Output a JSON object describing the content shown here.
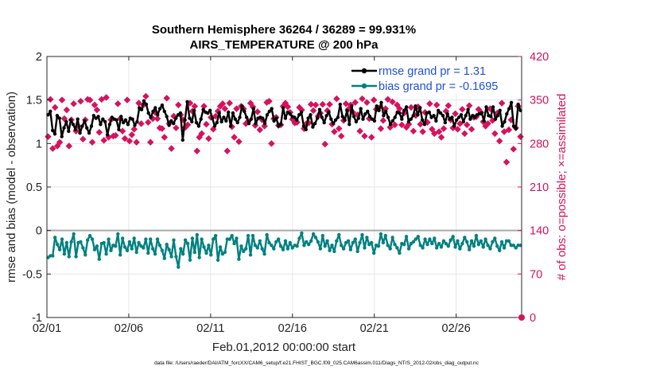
{
  "chart_data": {
    "type": "line",
    "title_line1": "Southern Hemisphere 36264 / 36289 = 99.931%",
    "title_line2": "AIRS_TEMPERATURE @ 200 hPa",
    "xlabel": "Feb.01,2012 00:00:00 start",
    "ylabel_left": "rmse and bias (model - observation)",
    "ylabel_right": "# of obs: o=possible; ×=assimilated",
    "footer": "data file: /Users/raeder/DAI/ATM_forcXX/CAM6_setup/f.e21.FHIST_BGC.f09_025.CAM6assim.011/Diags_NTrS_2012-02/obs_diag_output.nc",
    "x_ticks": [
      "02/01",
      "02/06",
      "02/11",
      "02/16",
      "02/21",
      "02/26"
    ],
    "xlim_days": [
      0,
      29
    ],
    "y_left_ticks": [
      "-1",
      "-0.5",
      "0",
      "0.5",
      "1",
      "1.5",
      "2"
    ],
    "ylim_left": [
      -1,
      2
    ],
    "y_right_ticks": [
      "0",
      "70",
      "140",
      "210",
      "280",
      "350",
      "420"
    ],
    "ylim_right": [
      0,
      420
    ],
    "grid": true,
    "legend_position": "top-right",
    "colors": {
      "rmse": "#000000",
      "bias": "#008080",
      "obs": "#d6125e",
      "zero": "#aaaaaa"
    },
    "series": [
      {
        "name": "rmse grand pr = 1.31",
        "axis": "left",
        "values": [
          1.33,
          1.37,
          1.15,
          1.11,
          1.32,
          1.29,
          1.08,
          1.18,
          1.25,
          1.14,
          1.27,
          1.22,
          1.16,
          1.28,
          1.12,
          1.2,
          1.26,
          1.18,
          1.12,
          1.2,
          1.32,
          1.29,
          1.31,
          1.22,
          1.28,
          1.25,
          1.1,
          1.22,
          1.3,
          1.28,
          1.27,
          1.16,
          1.31,
          1.24,
          1.27,
          1.22,
          1.29,
          1.28,
          1.21,
          1.25,
          1.41,
          1.39,
          1.49,
          1.45,
          1.35,
          1.3,
          1.37,
          1.41,
          1.33,
          1.4,
          1.44,
          1.37,
          1.31,
          1.21,
          1.26,
          1.23,
          1.29,
          1.33,
          1.35,
          1.04,
          1.27,
          1.48,
          1.29,
          1.25,
          1.38,
          1.24,
          1.2,
          1.28,
          1.39,
          1.36,
          1.35,
          1.38,
          1.29,
          1.2,
          1.24,
          1.35,
          1.25,
          1.3,
          1.26,
          1.36,
          1.2,
          1.35,
          1.28,
          1.24,
          1.3,
          1.43,
          1.37,
          1.3,
          1.23,
          1.28,
          1.4,
          1.23,
          1.29,
          1.3,
          1.29,
          1.23,
          1.33,
          1.37,
          1.4,
          1.26,
          1.29,
          1.2,
          1.22,
          1.41,
          1.29,
          1.36,
          1.34,
          1.31,
          1.3,
          1.27,
          1.33,
          1.36,
          1.2,
          1.16,
          1.29,
          1.33,
          1.19,
          1.23,
          1.29,
          1.39,
          1.3,
          1.24,
          1.32,
          1.36,
          1.28,
          1.23,
          1.27,
          1.3,
          1.45,
          1.31,
          1.27,
          1.38,
          1.22,
          1.43,
          1.31,
          1.25,
          1.29,
          1.4,
          1.28,
          1.34,
          1.37,
          1.31,
          1.28,
          1.26,
          1.43,
          1.38,
          1.47,
          1.32,
          1.37,
          1.3,
          1.22,
          1.26,
          1.3,
          1.36,
          1.35,
          1.28,
          1.38,
          1.42,
          1.25,
          1.28,
          1.32,
          1.43,
          1.33,
          1.41,
          1.27,
          1.22,
          1.35,
          1.36,
          1.3,
          1.32,
          1.26,
          1.38,
          1.35,
          1.32,
          1.24,
          1.34,
          1.28,
          1.3,
          1.2,
          1.27,
          1.3,
          1.33,
          1.25,
          1.32,
          1.39,
          1.28,
          1.32,
          1.3,
          1.33,
          1.34,
          1.35,
          1.26,
          1.42,
          1.32,
          1.31,
          1.42,
          1.28,
          1.32,
          1.38,
          1.2,
          1.25,
          1.34,
          1.4,
          1.47,
          1.2,
          1.17,
          1.45,
          1.38
        ]
      },
      {
        "name": "bias grand pr = -0.1695",
        "axis": "left",
        "values": [
          -0.31,
          -0.29,
          -0.29,
          -0.08,
          -0.16,
          -0.22,
          -0.1,
          -0.27,
          -0.14,
          -0.3,
          -0.13,
          -0.04,
          -0.3,
          -0.14,
          -0.13,
          -0.2,
          -0.28,
          -0.11,
          -0.06,
          -0.1,
          -0.22,
          -0.18,
          -0.33,
          -0.15,
          -0.14,
          -0.27,
          -0.1,
          -0.23,
          -0.17,
          -0.18,
          -0.04,
          -0.28,
          -0.09,
          -0.19,
          -0.23,
          -0.13,
          -0.21,
          -0.09,
          -0.25,
          -0.14,
          -0.18,
          -0.2,
          -0.1,
          -0.26,
          -0.1,
          -0.21,
          -0.27,
          -0.1,
          -0.17,
          -0.23,
          -0.32,
          -0.16,
          -0.22,
          -0.3,
          -0.11,
          -0.3,
          -0.42,
          -0.21,
          -0.27,
          -0.11,
          -0.15,
          -0.34,
          -0.09,
          -0.25,
          -0.05,
          -0.31,
          -0.1,
          -0.19,
          -0.26,
          -0.17,
          -0.28,
          -0.1,
          -0.06,
          -0.34,
          -0.19,
          -0.27,
          -0.25,
          -0.1,
          -0.1,
          -0.06,
          -0.15,
          -0.09,
          -0.33,
          -0.18,
          -0.24,
          -0.21,
          -0.06,
          -0.28,
          -0.06,
          -0.17,
          -0.2,
          -0.12,
          -0.21,
          -0.27,
          -0.05,
          -0.14,
          -0.17,
          -0.21,
          -0.13,
          -0.1,
          -0.18,
          -0.22,
          -0.12,
          -0.21,
          -0.14,
          -0.2,
          -0.17,
          -0.18,
          -0.09,
          -0.03,
          -0.17,
          -0.13,
          -0.16,
          -0.12,
          -0.04,
          -0.08,
          -0.13,
          -0.21,
          -0.06,
          -0.18,
          -0.12,
          -0.23,
          -0.17,
          -0.24,
          -0.12,
          -0.05,
          -0.17,
          -0.21,
          -0.14,
          -0.12,
          -0.22,
          -0.14,
          -0.1,
          -0.24,
          -0.14,
          -0.05,
          -0.2,
          -0.08,
          -0.16,
          -0.14,
          -0.26,
          -0.17,
          -0.18,
          -0.04,
          -0.14,
          -0.06,
          -0.17,
          -0.21,
          -0.08,
          -0.16,
          -0.2,
          -0.26,
          -0.15,
          -0.16,
          -0.07,
          -0.21,
          -0.15,
          -0.13,
          -0.1,
          -0.07,
          -0.17,
          -0.2,
          -0.1,
          -0.16,
          -0.1,
          -0.15,
          -0.09,
          -0.2,
          -0.15,
          -0.19,
          -0.12,
          -0.15,
          -0.18,
          -0.11,
          -0.07,
          -0.19,
          -0.12,
          -0.21,
          -0.15,
          -0.08,
          -0.13,
          -0.22,
          -0.12,
          -0.18,
          -0.06,
          -0.16,
          -0.12,
          -0.19,
          -0.1,
          -0.17,
          -0.21,
          -0.13,
          -0.09,
          -0.18,
          -0.23,
          -0.13,
          -0.2,
          -0.12,
          -0.12,
          -0.17,
          -0.17,
          -0.2,
          -0.17,
          -0.17
        ]
      },
      {
        "name": "assimilated",
        "axis": "right",
        "values": [
          291,
          351,
          272,
          338,
          276,
          282,
          350,
          320,
          334,
          276,
          318,
          344,
          300,
          308,
          348,
          287,
          318,
          351,
          350,
          282,
          342,
          334,
          298,
          351,
          285,
          354,
          290,
          318,
          292,
          293,
          344,
          320,
          300,
          288,
          350,
          284,
          294,
          303,
          282,
          345,
          312,
          342,
          356,
          314,
          282,
          320,
          330,
          320,
          305,
          304,
          290,
          353,
          312,
          272,
          324,
          305,
          342,
          326,
          318,
          306,
          310,
          345,
          332,
          340,
          268,
          290,
          296,
          340,
          311,
          288,
          322,
          303,
          324,
          332,
          340,
          344,
          336,
          268,
          345,
          307,
          290,
          336,
          283,
          340,
          336,
          312,
          316,
          345,
          339,
          309,
          331,
          302,
          318,
          308,
          346,
          348,
          280,
          320,
          322,
          309,
          310,
          340,
          345,
          339,
          330,
          319,
          313,
          314,
          338,
          334,
          304,
          312,
          313,
          343,
          333,
          342,
          324,
          329,
          343,
          279,
          333,
          343,
          311,
          299,
          352,
          304,
          292,
          317,
          344,
          335,
          342,
          330,
          346,
          326,
          300,
          352,
          292,
          346,
          320,
          290,
          350,
          335,
          337,
          304,
          317,
          336,
          351,
          306,
          347,
          310,
          342,
          336,
          310,
          329,
          306,
          311,
          338,
          300,
          325,
          339,
          311,
          299,
          330,
          314,
          344,
          303,
          296,
          342,
          299,
          290,
          304,
          332,
          341,
          318,
          305,
          328,
          303,
          312,
          335,
          296,
          310,
          341,
          303,
          322,
          323,
          335,
          330,
          315,
          308,
          312,
          336,
          317,
          296,
          329,
          284,
          345,
          299,
          250,
          302,
          318,
          271,
          305,
          340,
          291
        ]
      }
    ]
  }
}
